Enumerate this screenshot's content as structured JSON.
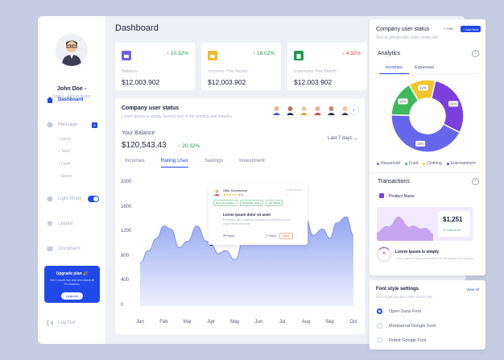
{
  "sidebar": {
    "user_name": "John Doe -",
    "user_status": "Status : Administrator",
    "nav": [
      {
        "label": "Dashboard"
      },
      {
        "label": "Message"
      },
      {
        "label": "Light Mode"
      },
      {
        "label": "Layout"
      },
      {
        "label": "Document"
      },
      {
        "label": "Log Out"
      }
    ],
    "message_sub": [
      "Inbox",
      "Sent",
      "Draft",
      "Spam"
    ],
    "message_badge": "5",
    "upgrade": {
      "title": "Upgrade plan 🎉",
      "desc": "Get 1 month free trial and unlock all Pro features",
      "button": "Upgrade"
    }
  },
  "header": {
    "title": "Dashboard"
  },
  "stats": [
    {
      "label": "Balance",
      "value": "$12,003.902",
      "change": "10.32%",
      "direction": "up",
      "icon": "wallet-icon",
      "color": "#6d62e6"
    },
    {
      "label": "Incomes This Month",
      "value": "$12,003.902",
      "change": "16.02%",
      "direction": "up",
      "icon": "card-icon",
      "color": "#f5b82a"
    },
    {
      "label": "Expenses This Month",
      "value": "$12,003.902",
      "change": "4.32%",
      "direction": "down",
      "icon": "receipt-icon",
      "color": "#1e9b53"
    }
  ],
  "status_panel": {
    "title": "Company user status",
    "subtitle": "Lorem Ipsum is simply dummy text of the printing and industry",
    "balance_label": "Your Balance",
    "balance": "$120,543.43",
    "balance_change": "20.32%",
    "period": "Last 7 days",
    "tabs": [
      "Incomes",
      "Rating User",
      "Savings",
      "Investment"
    ],
    "active_tab": "Rating User"
  },
  "popup": {
    "name": "Offie Khamumba",
    "date": "Lorem Ipsum",
    "rating": "4.8",
    "tags": [
      "Recommendation",
      "Appreciate review",
      "Top Market"
    ],
    "heading": "Lorem ipsum dolor sit amet",
    "body": "Excepteur sint occaecat cupidatat non proident sunt in culpa officia deserunt",
    "action_left": "Report",
    "action_share": "Share",
    "action_btn": "Reply"
  },
  "chart_data": {
    "type": "area",
    "categories": [
      "Jan",
      "Feb",
      "Mar",
      "Apr",
      "May",
      "Jun",
      "Jul",
      "Aug",
      "Sep",
      "Oct"
    ],
    "y_ticks": [
      0,
      400,
      800,
      1200,
      1600,
      2000
    ],
    "ylim": [
      0,
      2000
    ],
    "x": [
      0,
      0.35,
      0.7,
      1,
      1.3,
      1.65,
      2,
      2.4,
      2.8,
      3,
      3.3,
      3.6,
      4,
      4.4,
      4.8,
      5.1,
      5.5,
      5.9,
      6.2,
      6.6,
      7,
      7.3,
      7.7,
      8,
      8.3,
      8.7,
      9
    ],
    "values": [
      700,
      900,
      1100,
      1300,
      1250,
      950,
      1050,
      1300,
      1050,
      1000,
      850,
      900,
      750,
      1100,
      1350,
      1150,
      1250,
      1000,
      1350,
      1550,
      1400,
      1150,
      1250,
      1100,
      1350,
      1450,
      1150
    ],
    "highlight": {
      "category": "Apr"
    },
    "color": "#7f95ef"
  },
  "company_status": {
    "title": "Company user status",
    "subtitle": "Sed ut perspiciatis unde omnis iste",
    "filter_label": "Filter",
    "add_label": "+ Add New"
  },
  "analytics": {
    "title": "Analytics",
    "tabs": [
      "Incomes",
      "Expenses"
    ],
    "donut": {
      "type": "pie",
      "slices": [
        {
          "name": "Household",
          "value": 43,
          "label": "43%",
          "color": "#6566e9"
        },
        {
          "name": "Food",
          "value": 16,
          "label": "16%",
          "color": "#3cb95a"
        },
        {
          "name": "Clothing",
          "value": 12,
          "label": "12%",
          "color": "#f2c530"
        },
        {
          "name": "Entertainment",
          "value": 29,
          "label": "29%",
          "color": "#7a3fdc"
        }
      ]
    }
  },
  "transactions": {
    "title": "Transactions",
    "product": "Product Name",
    "amount": "$1,251",
    "change": "+19.24 %",
    "item_title": "Lorem Ipsum is simply",
    "item_desc": "Lorem Ipsum is simply dummy text of the printing and industry",
    "item_icon_label": "A"
  },
  "font_settings": {
    "title": "Font style settings",
    "subtitle": "Sed ut perspiciatis unde omnis iste",
    "view_all": "View All",
    "options": [
      "Open Sans Font",
      "Montserrat Google Font",
      "Robot Google Font"
    ],
    "selected": 0
  }
}
